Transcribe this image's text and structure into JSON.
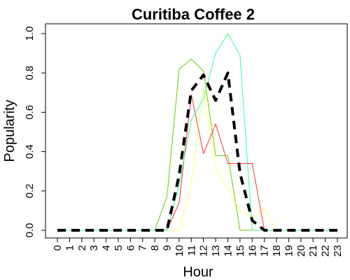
{
  "chart_data": {
    "type": "line",
    "title": "Curitiba Coffee 2",
    "xlabel": "Hour",
    "ylabel": "Popularity",
    "xlim": [
      0,
      23
    ],
    "ylim": [
      0,
      1.0
    ],
    "x": [
      0,
      1,
      2,
      3,
      4,
      5,
      6,
      7,
      8,
      9,
      10,
      11,
      12,
      13,
      14,
      15,
      16,
      17,
      18,
      19,
      20,
      21,
      22,
      23
    ],
    "x_tick_labels": [
      "0",
      "1",
      "2",
      "3",
      "4",
      "5",
      "6",
      "7",
      "8",
      "9",
      "10",
      "11",
      "12",
      "13",
      "14",
      "15",
      "16",
      "17",
      "18",
      "19",
      "20",
      "21",
      "22",
      "23"
    ],
    "y_ticks": [
      0.0,
      0.2,
      0.4,
      0.6,
      0.8,
      1.0
    ],
    "y_tick_labels": [
      "0.0",
      "0.2",
      "0.4",
      "0.6",
      "0.8",
      "1.0"
    ],
    "grid": false,
    "legend": "none",
    "series": [
      {
        "color": "#66cc00",
        "width": 1,
        "dash": "",
        "values": [
          0,
          0,
          0,
          0,
          0,
          0,
          0,
          0,
          0,
          0.17,
          0.82,
          0.87,
          0.81,
          0.38,
          0.38,
          0,
          0,
          0,
          0,
          0,
          0,
          0,
          0,
          0
        ]
      },
      {
        "color": "#ffff66",
        "width": 1,
        "dash": "",
        "values": [
          0,
          0,
          0,
          0,
          0,
          0,
          0,
          0,
          0,
          0,
          0,
          0.24,
          0.72,
          0.31,
          0.21,
          0.1,
          0.06,
          0.11,
          0,
          0,
          0,
          0,
          0,
          0
        ]
      },
      {
        "color": "#ff3333",
        "width": 1,
        "dash": "",
        "values": [
          0,
          0,
          0,
          0,
          0,
          0,
          0,
          0,
          0,
          0,
          0.14,
          0.69,
          0.39,
          0.54,
          0.34,
          0.34,
          0.34,
          0,
          0,
          0,
          0,
          0,
          0,
          0
        ]
      },
      {
        "color": "#33ff99",
        "width": 1,
        "dash": "",
        "values": [
          0,
          0,
          0,
          0,
          0,
          0,
          0,
          0,
          0,
          0,
          0.23,
          0.56,
          0.67,
          0.9,
          1.0,
          0.89,
          0,
          0,
          0,
          0,
          0,
          0,
          0,
          0
        ]
      },
      {
        "color": "#000000",
        "width": 4,
        "dash": "12,8",
        "values": [
          0,
          0,
          0,
          0,
          0,
          0,
          0,
          0,
          0,
          0,
          0.28,
          0.71,
          0.79,
          0.66,
          0.8,
          0.29,
          0.05,
          0,
          0,
          0,
          0,
          0,
          0,
          0
        ]
      }
    ]
  }
}
